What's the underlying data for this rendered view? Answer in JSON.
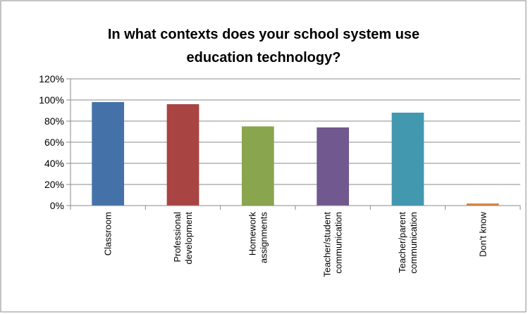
{
  "chart_data": {
    "type": "bar",
    "title_lines": [
      "In what contexts does your school system use",
      "education technology?"
    ],
    "category_lines": [
      [
        "Classroom"
      ],
      [
        "Professional",
        "development"
      ],
      [
        "Homework",
        "assignments"
      ],
      [
        "Teacher/student",
        "communication"
      ],
      [
        "Teacher/parent",
        "communication"
      ],
      [
        "Don't know"
      ]
    ],
    "values": [
      98,
      96,
      75,
      74,
      88,
      2
    ],
    "colors": [
      "#4472a8",
      "#a84442",
      "#89a54e",
      "#71588f",
      "#4198af",
      "#db843d"
    ],
    "ylim": [
      0,
      120
    ],
    "yticks": [
      0,
      20,
      40,
      60,
      80,
      100,
      120
    ],
    "ytick_labels": [
      "0%",
      "20%",
      "40%",
      "60%",
      "80%",
      "100%",
      "120%"
    ],
    "grid": "horizontal",
    "legend": "none"
  }
}
